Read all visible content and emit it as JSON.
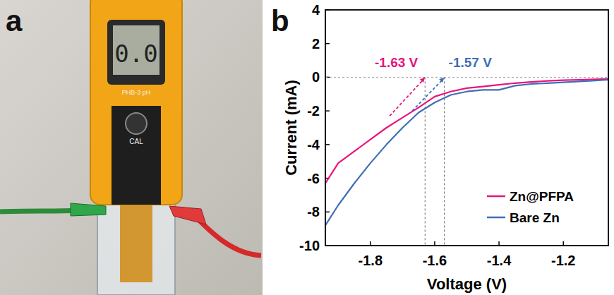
{
  "photo": {
    "label": "a",
    "reading": "0.0",
    "model": "PHB-3 pH",
    "button": "CAL"
  },
  "chart_data": {
    "type": "line",
    "panel_label": "b",
    "x_label": "Voltage (V)",
    "y_label": "Current (mA)",
    "x": [
      -1.94,
      -1.9,
      -1.85,
      -1.8,
      -1.75,
      -1.7,
      -1.65,
      -1.6,
      -1.55,
      -1.5,
      -1.45,
      -1.4,
      -1.35,
      -1.3,
      -1.25,
      -1.2,
      -1.15,
      -1.1,
      -1.06
    ],
    "series": [
      {
        "name": "Zn@PFPA",
        "color": "#e8157c",
        "values": [
          -6.3,
          -5.1,
          -4.4,
          -3.7,
          -3.0,
          -2.4,
          -1.8,
          -1.15,
          -0.85,
          -0.65,
          -0.55,
          -0.45,
          -0.35,
          -0.28,
          -0.22,
          -0.18,
          -0.15,
          -0.12,
          -0.1
        ]
      },
      {
        "name": "Bare Zn",
        "color": "#3f6fb6",
        "values": [
          -8.8,
          -7.6,
          -6.3,
          -5.1,
          -4.0,
          -3.0,
          -2.1,
          -1.5,
          -1.05,
          -0.85,
          -0.75,
          -0.75,
          -0.5,
          -0.4,
          -0.35,
          -0.3,
          -0.25,
          -0.2,
          -0.15
        ]
      }
    ],
    "annotations": [
      {
        "text": "-1.63 V",
        "x": -1.63,
        "color": "#e8157c",
        "tangent_from": [
          -1.74,
          -2.3
        ]
      },
      {
        "text": "-1.57 V",
        "x": -1.57,
        "color": "#3f6fb6",
        "tangent_from": [
          -1.67,
          -2.0
        ]
      }
    ],
    "xlim": [
      -1.94,
      -1.06
    ],
    "xticks": [
      -1.8,
      -1.6,
      -1.4,
      -1.2
    ],
    "ylim": [
      -10,
      4
    ],
    "yticks": [
      -10,
      -8,
      -6,
      -4,
      -2,
      0,
      2,
      4
    ],
    "legend": "lower right",
    "grid": false
  }
}
